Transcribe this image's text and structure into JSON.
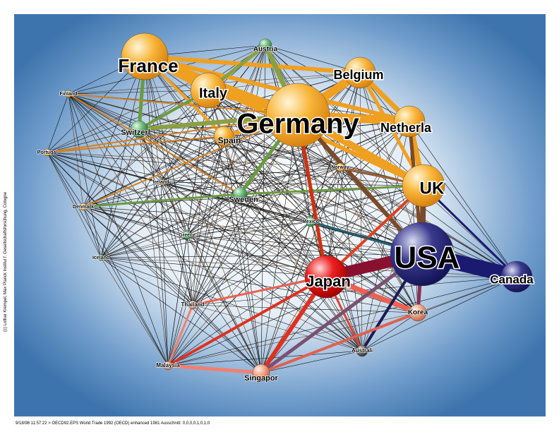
{
  "nodes": [
    {
      "label": "France"
    },
    {
      "label": "Austria"
    },
    {
      "label": "Belgium"
    },
    {
      "label": "Italy"
    },
    {
      "label": "Germany"
    },
    {
      "label": "Netherla"
    },
    {
      "label": "Switzerl"
    },
    {
      "label": "Spain"
    },
    {
      "label": "Finland"
    },
    {
      "label": "Portugal"
    },
    {
      "label": "Ireland"
    },
    {
      "label": "Norway"
    },
    {
      "label": "Denmark"
    },
    {
      "label": "Sweden"
    },
    {
      "label": "Greece"
    },
    {
      "label": "Mexico"
    },
    {
      "label": "Iceland"
    },
    {
      "label": "UK"
    },
    {
      "label": "USA"
    },
    {
      "label": "Canada"
    },
    {
      "label": "Japan"
    },
    {
      "label": "Korea"
    },
    {
      "label": "Thailand"
    },
    {
      "label": "Australi"
    },
    {
      "label": "Malaysia"
    },
    {
      "label": "Singapor"
    }
  ],
  "copyright": "(c) Lothar Krempel, Max Planck Institut f. Gesellschaftsforschung, Cologne",
  "footer": "9/18/98 11:57:22 > OECD92.EPS World Trade 1992 (OECD) enhanced 1981 Ausschnitt: 0,0,0,0,1,0,1,0"
}
